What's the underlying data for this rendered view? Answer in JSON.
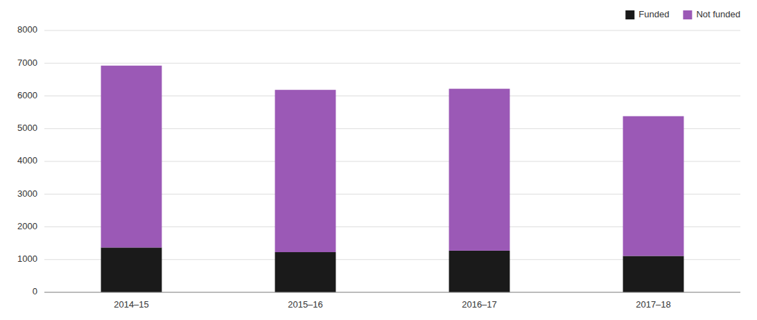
{
  "chart_data": {
    "type": "bar",
    "stacked": true,
    "categories": [
      "2014–15",
      "2015–16",
      "2016–17",
      "2017–18"
    ],
    "series": [
      {
        "name": "Funded",
        "color": "#1a1a1a",
        "values": [
          1368,
          1227,
          1272,
          1111
        ]
      },
      {
        "name": "Not funded",
        "color": "#9b59b6",
        "values": [
          5558,
          4959,
          4947,
          4270
        ]
      }
    ],
    "ylim": [
      0,
      8000
    ],
    "yticks": [
      0,
      1000,
      2000,
      3000,
      4000,
      5000,
      6000,
      7000,
      8000
    ],
    "grid": true,
    "legend": "upper right"
  }
}
